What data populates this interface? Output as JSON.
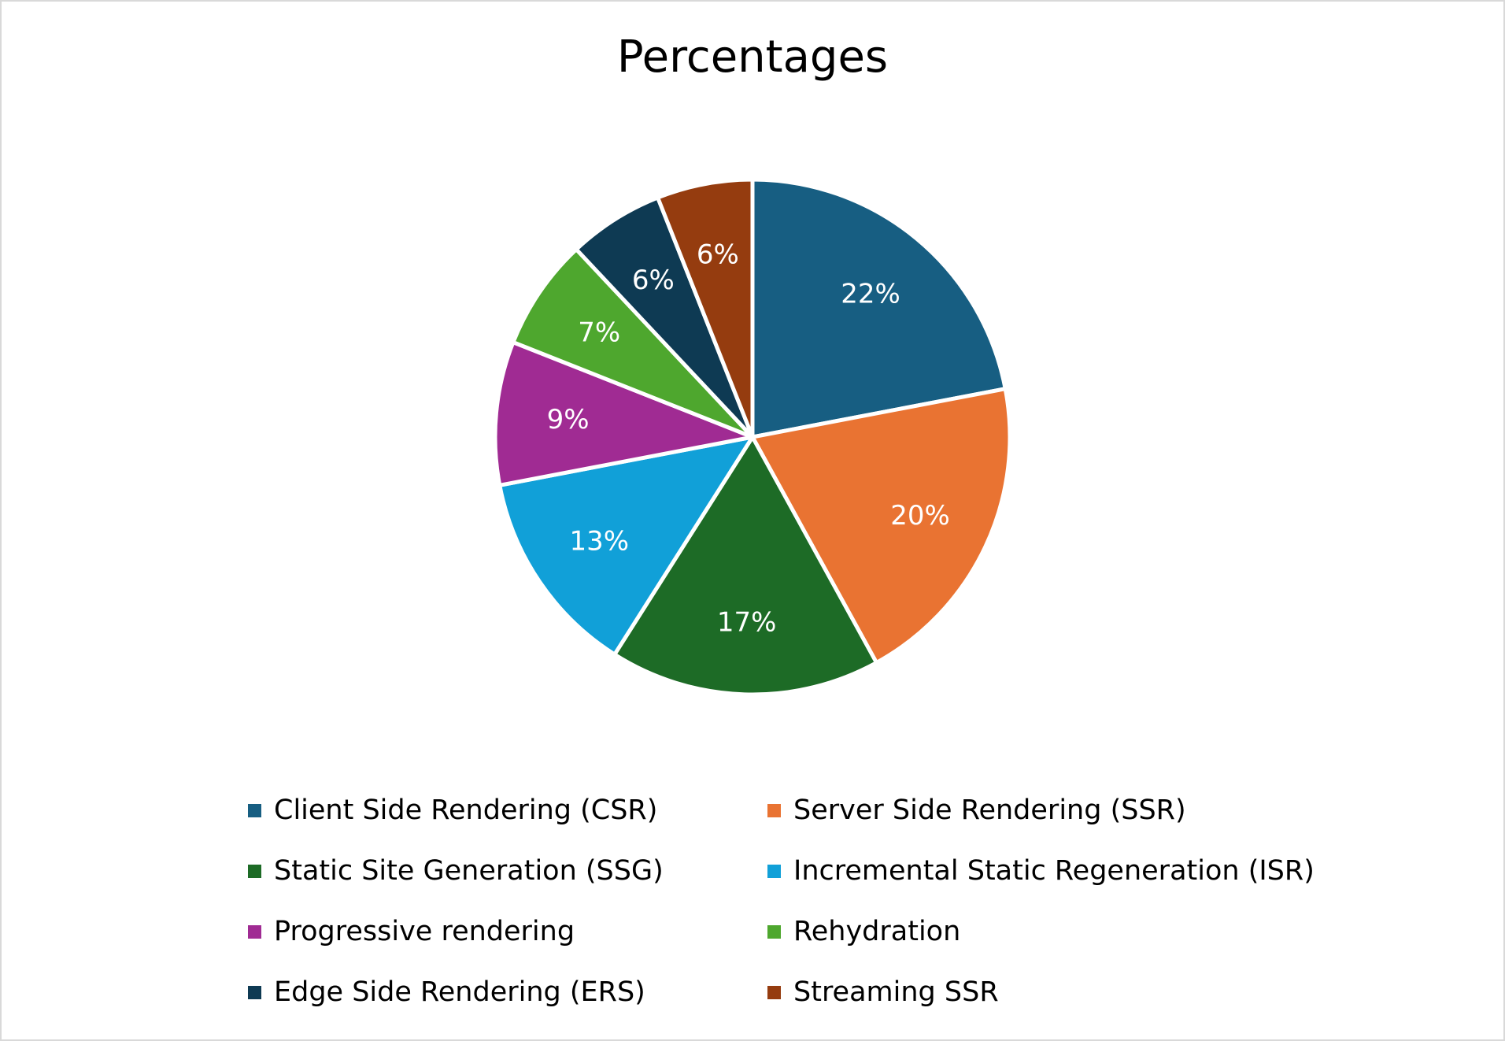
{
  "chart_data": {
    "type": "pie",
    "title": "Percentages",
    "categories": [
      "Client Side Rendering (CSR)",
      "Server Side Rendering (SSR)",
      "Static Site Generation (SSG)",
      "Incremental Static Regeneration (ISR)",
      "Progressive rendering",
      "Rehydration",
      "Edge Side Rendering (ERS)",
      "Streaming SSR"
    ],
    "values": [
      22,
      20,
      17,
      13,
      9,
      7,
      6,
      6
    ],
    "data_labels": [
      "22%",
      "20%",
      "17%",
      "13%",
      "9%",
      "7%",
      "6%",
      "6%"
    ],
    "colors": [
      "#175e82",
      "#e97332",
      "#1d6b26",
      "#11a0d8",
      "#a02b93",
      "#4ea72e",
      "#0e3a53",
      "#953c0f"
    ],
    "legend_position": "bottom"
  }
}
